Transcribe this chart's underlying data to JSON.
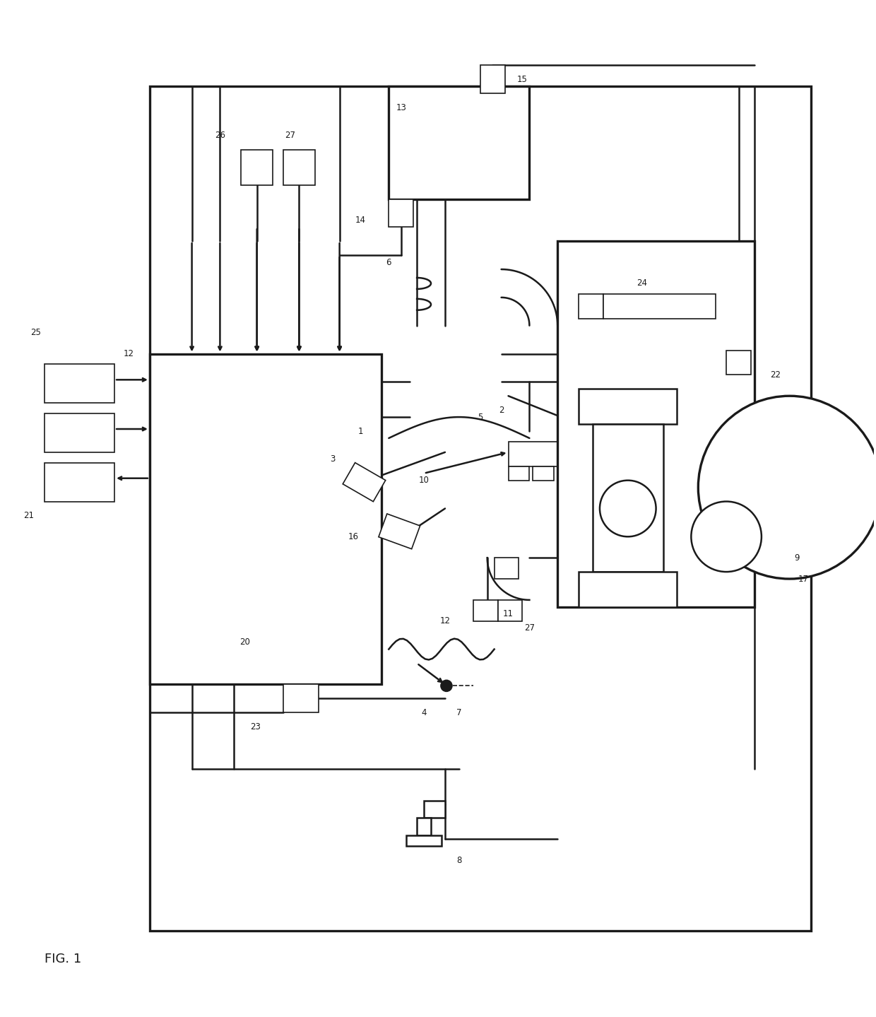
{
  "bg": "#ffffff",
  "lc": "#1a1a1a",
  "fig_label": "FIG. 1",
  "xlim": [
    0,
    124
  ],
  "ylim": [
    0,
    144
  ]
}
